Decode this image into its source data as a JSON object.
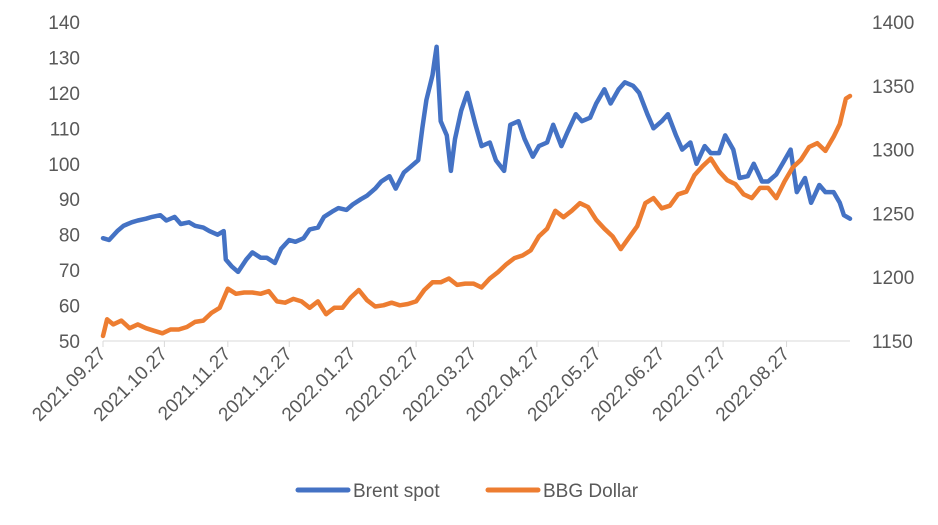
{
  "chart_data": {
    "type": "line",
    "x_ticks": [
      "2021.09.27",
      "2021.10.27",
      "2021.11.27",
      "2021.12.27",
      "2022.01.27",
      "2022.02.27",
      "2022.03.27",
      "2022.04.27",
      "2022.05.27",
      "2022.06.27",
      "2022.07.27",
      "2022.08.27"
    ],
    "x_range": [
      "2021.09.27",
      "2022.09.27"
    ],
    "y_left": {
      "min": 50,
      "max": 140,
      "step": 10,
      "ticks": [
        "140",
        "130",
        "120",
        "110",
        "100",
        "90",
        "80",
        "70",
        "60",
        "50"
      ]
    },
    "y_right": {
      "min": 1150,
      "max": 1400,
      "step": 50,
      "ticks": [
        "1400",
        "1350",
        "1300",
        "1250",
        "1200",
        "1150"
      ]
    },
    "grid": false,
    "legend_position": "bottom",
    "series": [
      {
        "name": "Brent spot",
        "axis": "left",
        "color": "#4472C4",
        "points": [
          [
            "2021.09.27",
            79
          ],
          [
            "2021.09.30",
            78.5
          ],
          [
            "2021.10.04",
            81
          ],
          [
            "2021.10.07",
            82.5
          ],
          [
            "2021.10.11",
            83.5
          ],
          [
            "2021.10.14",
            84
          ],
          [
            "2021.10.18",
            84.5
          ],
          [
            "2021.10.21",
            85
          ],
          [
            "2021.10.25",
            85.5
          ],
          [
            "2021.10.28",
            84
          ],
          [
            "2021.11.01",
            85
          ],
          [
            "2021.11.04",
            83
          ],
          [
            "2021.11.08",
            83.5
          ],
          [
            "2021.11.11",
            82.5
          ],
          [
            "2021.11.15",
            82
          ],
          [
            "2021.11.18",
            81
          ],
          [
            "2021.11.22",
            80
          ],
          [
            "2021.11.25",
            81
          ],
          [
            "2021.11.26",
            73
          ],
          [
            "2021.11.29",
            71
          ],
          [
            "2021.12.02",
            69.5
          ],
          [
            "2021.12.06",
            73
          ],
          [
            "2021.12.09",
            75
          ],
          [
            "2021.12.13",
            73.5
          ],
          [
            "2021.12.16",
            73.5
          ],
          [
            "2021.12.20",
            72
          ],
          [
            "2021.12.23",
            76
          ],
          [
            "2021.12.27",
            78.5
          ],
          [
            "2021.12.30",
            78
          ],
          [
            "2022.01.03",
            79
          ],
          [
            "2022.01.06",
            81.5
          ],
          [
            "2022.01.10",
            82
          ],
          [
            "2022.01.13",
            85
          ],
          [
            "2022.01.17",
            86.5
          ],
          [
            "2022.01.20",
            87.5
          ],
          [
            "2022.01.24",
            87
          ],
          [
            "2022.01.27",
            88.5
          ],
          [
            "2022.01.31",
            90
          ],
          [
            "2022.02.03",
            91
          ],
          [
            "2022.02.07",
            93
          ],
          [
            "2022.02.10",
            95
          ],
          [
            "2022.02.14",
            96.5
          ],
          [
            "2022.02.17",
            93
          ],
          [
            "2022.02.21",
            97.5
          ],
          [
            "2022.02.24",
            99
          ],
          [
            "2022.02.28",
            101
          ],
          [
            "2022.03.02",
            110
          ],
          [
            "2022.03.04",
            118
          ],
          [
            "2022.03.07",
            125
          ],
          [
            "2022.03.08",
            129
          ],
          [
            "2022.03.09",
            133
          ],
          [
            "2022.03.11",
            112
          ],
          [
            "2022.03.14",
            108
          ],
          [
            "2022.03.16",
            98
          ],
          [
            "2022.03.18",
            107
          ],
          [
            "2022.03.21",
            115
          ],
          [
            "2022.03.24",
            120
          ],
          [
            "2022.03.28",
            111
          ],
          [
            "2022.03.31",
            105
          ],
          [
            "2022.04.04",
            106
          ],
          [
            "2022.04.07",
            101
          ],
          [
            "2022.04.11",
            98
          ],
          [
            "2022.04.14",
            111
          ],
          [
            "2022.04.18",
            112
          ],
          [
            "2022.04.21",
            107
          ],
          [
            "2022.04.25",
            102
          ],
          [
            "2022.04.28",
            105
          ],
          [
            "2022.05.02",
            106
          ],
          [
            "2022.05.05",
            111
          ],
          [
            "2022.05.09",
            105
          ],
          [
            "2022.05.12",
            109
          ],
          [
            "2022.05.16",
            114
          ],
          [
            "2022.05.19",
            112
          ],
          [
            "2022.05.23",
            113
          ],
          [
            "2022.05.26",
            117
          ],
          [
            "2022.05.30",
            121
          ],
          [
            "2022.06.02",
            117
          ],
          [
            "2022.06.06",
            121
          ],
          [
            "2022.06.09",
            123
          ],
          [
            "2022.06.13",
            122
          ],
          [
            "2022.06.16",
            120
          ],
          [
            "2022.06.20",
            114
          ],
          [
            "2022.06.23",
            110
          ],
          [
            "2022.06.27",
            112
          ],
          [
            "2022.06.30",
            114
          ],
          [
            "2022.07.04",
            108
          ],
          [
            "2022.07.07",
            104
          ],
          [
            "2022.07.11",
            106
          ],
          [
            "2022.07.14",
            100
          ],
          [
            "2022.07.18",
            105
          ],
          [
            "2022.07.21",
            103
          ],
          [
            "2022.07.25",
            103
          ],
          [
            "2022.07.28",
            108
          ],
          [
            "2022.08.01",
            104
          ],
          [
            "2022.08.04",
            96
          ],
          [
            "2022.08.08",
            96.5
          ],
          [
            "2022.08.11",
            100
          ],
          [
            "2022.08.15",
            95
          ],
          [
            "2022.08.18",
            95
          ],
          [
            "2022.08.22",
            97
          ],
          [
            "2022.08.25",
            100
          ],
          [
            "2022.08.29",
            104
          ],
          [
            "2022.09.01",
            92
          ],
          [
            "2022.09.05",
            96
          ],
          [
            "2022.09.08",
            89
          ],
          [
            "2022.09.12",
            94
          ],
          [
            "2022.09.15",
            92
          ],
          [
            "2022.09.19",
            92
          ],
          [
            "2022.09.22",
            89
          ],
          [
            "2022.09.24",
            85.5
          ],
          [
            "2022.09.27",
            84.5
          ]
        ]
      },
      {
        "name": "BBG Dollar",
        "axis": "right",
        "color": "#ED7D31",
        "points": [
          [
            "2021.09.27",
            1154
          ],
          [
            "2021.09.29",
            1167
          ],
          [
            "2021.10.02",
            1163
          ],
          [
            "2021.10.06",
            1166
          ],
          [
            "2021.10.10",
            1160
          ],
          [
            "2021.10.14",
            1163
          ],
          [
            "2021.10.18",
            1160
          ],
          [
            "2021.10.22",
            1158
          ],
          [
            "2021.10.26",
            1156
          ],
          [
            "2021.10.30",
            1159
          ],
          [
            "2021.11.03",
            1159
          ],
          [
            "2021.11.07",
            1161
          ],
          [
            "2021.11.11",
            1165
          ],
          [
            "2021.11.15",
            1166
          ],
          [
            "2021.11.19",
            1172
          ],
          [
            "2021.11.23",
            1176
          ],
          [
            "2021.11.27",
            1191
          ],
          [
            "2021.12.01",
            1187
          ],
          [
            "2021.12.05",
            1188
          ],
          [
            "2021.12.09",
            1188
          ],
          [
            "2021.12.13",
            1187
          ],
          [
            "2021.12.17",
            1189
          ],
          [
            "2021.12.21",
            1181
          ],
          [
            "2021.12.25",
            1180
          ],
          [
            "2021.12.29",
            1183
          ],
          [
            "2022.01.02",
            1181
          ],
          [
            "2022.01.06",
            1176
          ],
          [
            "2022.01.10",
            1181
          ],
          [
            "2022.01.14",
            1171
          ],
          [
            "2022.01.18",
            1176
          ],
          [
            "2022.01.22",
            1176
          ],
          [
            "2022.01.26",
            1184
          ],
          [
            "2022.01.30",
            1190
          ],
          [
            "2022.02.03",
            1182
          ],
          [
            "2022.02.07",
            1177
          ],
          [
            "2022.02.11",
            1178
          ],
          [
            "2022.02.15",
            1180
          ],
          [
            "2022.02.19",
            1178
          ],
          [
            "2022.02.23",
            1179
          ],
          [
            "2022.02.27",
            1181
          ],
          [
            "2022.03.03",
            1190
          ],
          [
            "2022.03.07",
            1196
          ],
          [
            "2022.03.11",
            1196
          ],
          [
            "2022.03.15",
            1199
          ],
          [
            "2022.03.19",
            1194
          ],
          [
            "2022.03.23",
            1195
          ],
          [
            "2022.03.27",
            1195
          ],
          [
            "2022.03.31",
            1192
          ],
          [
            "2022.04.04",
            1199
          ],
          [
            "2022.04.08",
            1204
          ],
          [
            "2022.04.12",
            1210
          ],
          [
            "2022.04.16",
            1215
          ],
          [
            "2022.04.20",
            1217
          ],
          [
            "2022.04.24",
            1221
          ],
          [
            "2022.04.28",
            1232
          ],
          [
            "2022.05.02",
            1238
          ],
          [
            "2022.05.06",
            1252
          ],
          [
            "2022.05.10",
            1247
          ],
          [
            "2022.05.14",
            1252
          ],
          [
            "2022.05.18",
            1258
          ],
          [
            "2022.05.22",
            1255
          ],
          [
            "2022.05.26",
            1245
          ],
          [
            "2022.05.30",
            1238
          ],
          [
            "2022.06.03",
            1232
          ],
          [
            "2022.06.07",
            1222
          ],
          [
            "2022.06.11",
            1231
          ],
          [
            "2022.06.15",
            1240
          ],
          [
            "2022.06.19",
            1258
          ],
          [
            "2022.06.23",
            1262
          ],
          [
            "2022.06.27",
            1254
          ],
          [
            "2022.07.01",
            1256
          ],
          [
            "2022.07.05",
            1265
          ],
          [
            "2022.07.09",
            1267
          ],
          [
            "2022.07.13",
            1280
          ],
          [
            "2022.07.17",
            1287
          ],
          [
            "2022.07.21",
            1293
          ],
          [
            "2022.07.25",
            1283
          ],
          [
            "2022.07.29",
            1276
          ],
          [
            "2022.08.02",
            1273
          ],
          [
            "2022.08.06",
            1265
          ],
          [
            "2022.08.10",
            1262
          ],
          [
            "2022.08.14",
            1270
          ],
          [
            "2022.08.18",
            1270
          ],
          [
            "2022.08.22",
            1262
          ],
          [
            "2022.08.26",
            1275
          ],
          [
            "2022.08.30",
            1286
          ],
          [
            "2022.09.03",
            1292
          ],
          [
            "2022.09.07",
            1302
          ],
          [
            "2022.09.11",
            1305
          ],
          [
            "2022.09.15",
            1299
          ],
          [
            "2022.09.19",
            1310
          ],
          [
            "2022.09.22",
            1320
          ],
          [
            "2022.09.25",
            1340
          ],
          [
            "2022.09.27",
            1342
          ]
        ]
      }
    ]
  }
}
